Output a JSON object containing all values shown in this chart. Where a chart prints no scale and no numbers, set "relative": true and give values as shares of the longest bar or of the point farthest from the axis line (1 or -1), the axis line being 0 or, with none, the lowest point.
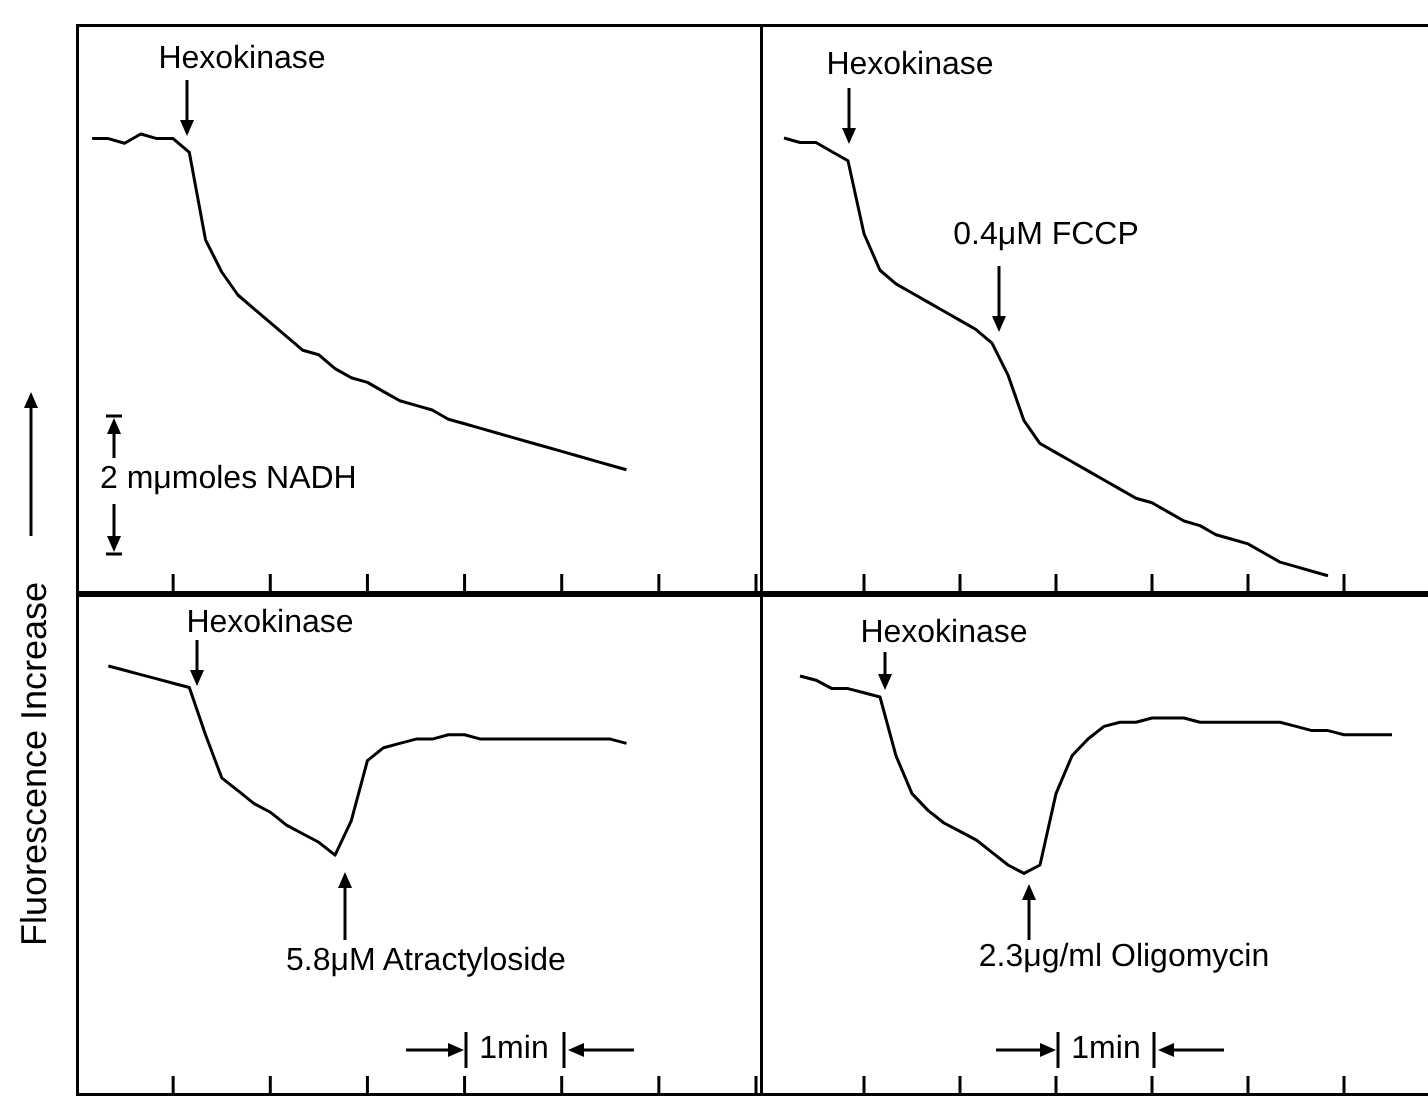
{
  "chart_data": [
    {
      "type": "line",
      "relative": true,
      "tick_labels": false,
      "ylabel": "Fluorescence Increase",
      "color": "#000000",
      "annotations": [
        "Hexokinase",
        "2 mμmoles NADH"
      ],
      "categories": [
        null,
        null,
        null,
        null,
        null,
        null,
        null,
        null,
        null,
        null,
        null,
        null,
        null,
        null,
        null,
        null,
        null,
        null,
        null,
        null,
        null,
        null,
        null,
        null,
        null,
        null,
        null,
        null,
        null,
        null,
        null,
        null,
        null,
        null,
        null,
        null,
        null,
        null,
        null,
        null,
        null,
        null,
        null
      ],
      "values": [
        null,
        0.99,
        0.99,
        0.98,
        1.0,
        0.99,
        0.99,
        0.96,
        0.77,
        0.7,
        0.65,
        0.62,
        0.59,
        0.56,
        0.53,
        0.52,
        0.49,
        0.47,
        0.46,
        0.44,
        0.42,
        0.41,
        0.4,
        0.38,
        0.37,
        0.36,
        0.35,
        0.34,
        0.33,
        0.32,
        0.31,
        0.3,
        0.29,
        0.28,
        0.27,
        null,
        null,
        null,
        null,
        null,
        null,
        null,
        null
      ]
    },
    {
      "type": "line",
      "relative": true,
      "tick_labels": false,
      "color": "#000000",
      "annotations": [
        "Hexokinase",
        "0.4μM FCCP"
      ],
      "categories": [
        null,
        null,
        null,
        null,
        null,
        null,
        null,
        null,
        null,
        null,
        null,
        null,
        null,
        null,
        null,
        null,
        null,
        null,
        null,
        null,
        null,
        null,
        null,
        null,
        null,
        null,
        null,
        null,
        null,
        null,
        null,
        null,
        null,
        null,
        null,
        null,
        null,
        null,
        null,
        null,
        null,
        null
      ],
      "values": [
        null,
        1.0,
        0.99,
        0.99,
        0.97,
        0.95,
        0.79,
        0.71,
        0.68,
        0.66,
        0.64,
        0.62,
        0.6,
        0.58,
        0.55,
        0.48,
        0.38,
        0.33,
        0.31,
        0.29,
        0.27,
        0.25,
        0.23,
        0.21,
        0.2,
        0.18,
        0.16,
        0.15,
        0.13,
        0.12,
        0.11,
        0.09,
        0.07,
        0.06,
        0.05,
        0.04,
        null,
        null,
        null,
        null,
        null,
        null
      ]
    },
    {
      "type": "line",
      "relative": true,
      "tick_labels": false,
      "color": "#000000",
      "annotations": [
        "Hexokinase",
        "5.8μM Atractyloside",
        "1min"
      ],
      "categories": [
        null,
        null,
        null,
        null,
        null,
        null,
        null,
        null,
        null,
        null,
        null,
        null,
        null,
        null,
        null,
        null,
        null,
        null,
        null,
        null,
        null,
        null,
        null,
        null,
        null,
        null,
        null,
        null,
        null,
        null,
        null,
        null,
        null,
        null,
        null,
        null,
        null,
        null,
        null,
        null,
        null,
        null,
        null
      ],
      "values": [
        null,
        null,
        1.0,
        0.99,
        0.98,
        0.97,
        0.96,
        0.95,
        0.84,
        0.74,
        0.71,
        0.68,
        0.66,
        0.63,
        0.61,
        0.59,
        0.56,
        0.64,
        0.78,
        0.81,
        0.82,
        0.83,
        0.83,
        0.84,
        0.84,
        0.83,
        0.83,
        0.83,
        0.83,
        0.83,
        0.83,
        0.83,
        0.83,
        0.83,
        0.82,
        null,
        null,
        null,
        null,
        null,
        null,
        null,
        null
      ]
    },
    {
      "type": "line",
      "relative": true,
      "tick_labels": false,
      "color": "#000000",
      "annotations": [
        "Hexokinase",
        "2.3μg/ml Oligomycin",
        "1min"
      ],
      "categories": [
        null,
        null,
        null,
        null,
        null,
        null,
        null,
        null,
        null,
        null,
        null,
        null,
        null,
        null,
        null,
        null,
        null,
        null,
        null,
        null,
        null,
        null,
        null,
        null,
        null,
        null,
        null,
        null,
        null,
        null,
        null,
        null,
        null,
        null,
        null,
        null,
        null,
        null,
        null,
        null,
        null,
        null
      ],
      "values": [
        null,
        null,
        1.0,
        0.99,
        0.97,
        0.97,
        0.96,
        0.95,
        0.81,
        0.72,
        0.68,
        0.65,
        0.63,
        0.61,
        0.58,
        0.55,
        0.53,
        0.55,
        0.72,
        0.81,
        0.85,
        0.88,
        0.89,
        0.89,
        0.9,
        0.9,
        0.9,
        0.89,
        0.89,
        0.89,
        0.89,
        0.89,
        0.89,
        0.88,
        0.87,
        0.87,
        0.86,
        0.86,
        0.86,
        0.86,
        null,
        null
      ]
    }
  ]
}
